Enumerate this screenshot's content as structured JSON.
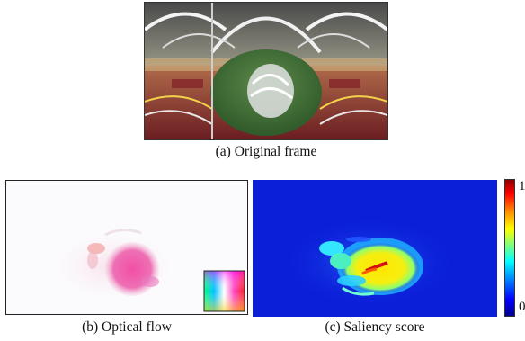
{
  "captions": {
    "a": "(a) Original frame",
    "b": "(b) Optical flow",
    "c": "(c) Saliency score"
  },
  "colorbar": {
    "max_label": "1",
    "min_label": "0",
    "colormap": "jet",
    "colors": [
      "#00008f",
      "#0000ff",
      "#00ffff",
      "#ffff00",
      "#ff0000",
      "#8f0000"
    ]
  }
}
